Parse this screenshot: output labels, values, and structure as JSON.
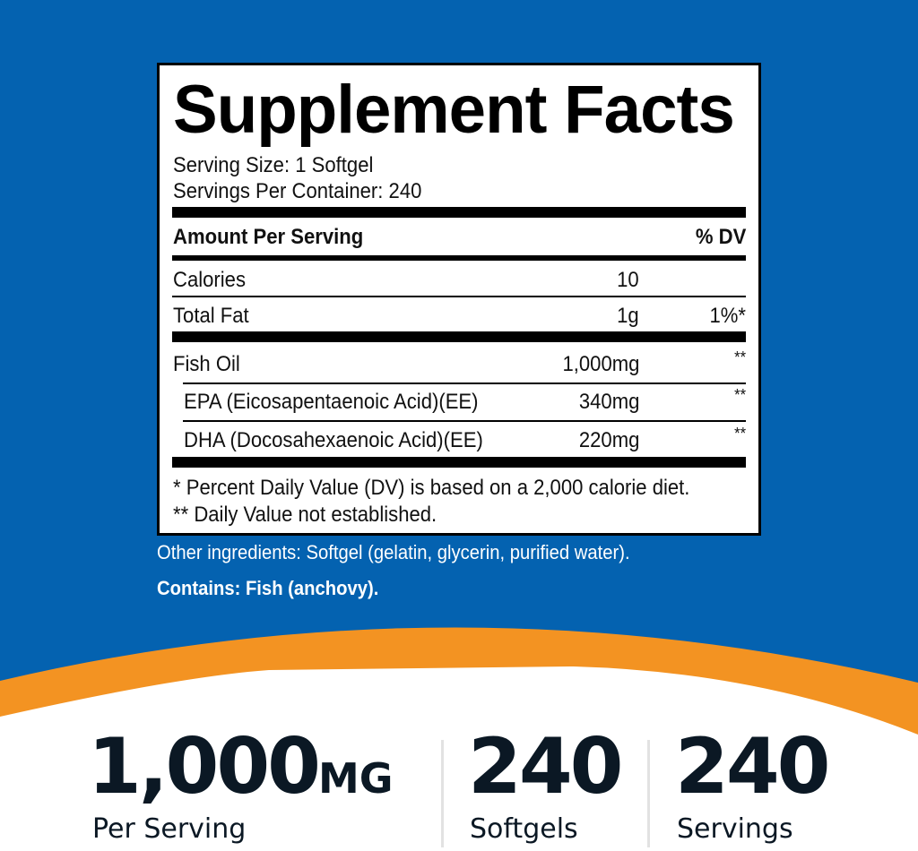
{
  "colors": {
    "background": "#0462b0",
    "accent": "#f39322",
    "text_dark": "#0b1824"
  },
  "facts": {
    "title": "Supplement Facts",
    "serving_size": "Serving Size: 1 Softgel",
    "servings_per_container": "Servings Per Container: 240",
    "header": {
      "amount": "Amount Per Serving",
      "dv": "% DV"
    },
    "rows": [
      {
        "name": "Calories",
        "amount": "10",
        "dv": ""
      },
      {
        "name": "Total Fat",
        "amount": "1g",
        "dv": "1%*"
      },
      {
        "name": "Fish Oil",
        "amount": "1,000mg",
        "dv": "**"
      },
      {
        "name": "EPA (Eicosapentaenoic Acid)(EE)",
        "amount": "340mg",
        "dv": "**"
      },
      {
        "name": "DHA (Docosahexaenoic Acid)(EE)",
        "amount": "220mg",
        "dv": "**"
      }
    ],
    "footnote1": "* Percent Daily Value (DV) is based on a 2,000 calorie diet.",
    "footnote2": "** Daily Value not established."
  },
  "other_ingredients": "Other ingredients: Softgel (gelatin, glycerin, purified water).",
  "contains": "Contains: Fish (anchovy).",
  "stats": [
    {
      "value": "1,000",
      "unit": "MG",
      "label": "Per Serving"
    },
    {
      "value": "240",
      "unit": "",
      "label": "Softgels"
    },
    {
      "value": "240",
      "unit": "",
      "label": "Servings"
    }
  ]
}
